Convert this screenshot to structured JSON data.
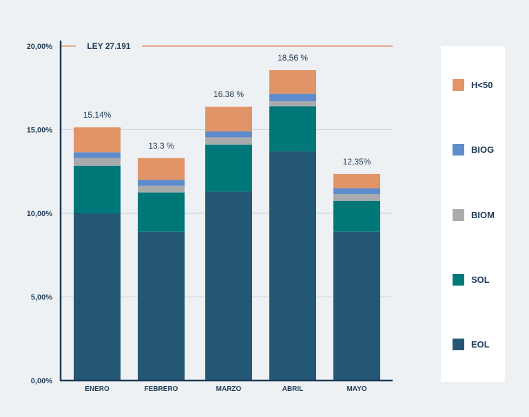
{
  "chart_data": {
    "type": "bar",
    "stacked": true,
    "categories": [
      "ENERO",
      "FEBRERO",
      "MARZO",
      "ABRIL",
      "MAYO"
    ],
    "series": [
      {
        "name": "EOL",
        "color": "#245773",
        "values": [
          10.0,
          8.9,
          11.3,
          13.7,
          8.9
        ]
      },
      {
        "name": "SOL",
        "color": "#00787a",
        "values": [
          2.85,
          2.35,
          2.8,
          2.7,
          1.85
        ]
      },
      {
        "name": "BIOM",
        "color": "#a9aaab",
        "values": [
          0.45,
          0.4,
          0.45,
          0.3,
          0.4
        ]
      },
      {
        "name": "BIOG",
        "color": "#5f8ccc",
        "values": [
          0.35,
          0.35,
          0.35,
          0.45,
          0.35
        ]
      },
      {
        "name": "H<50",
        "color": "#e09467",
        "values": [
          1.49,
          1.3,
          1.48,
          1.41,
          0.85
        ]
      }
    ],
    "totals_labels": [
      "15.14%",
      "13.3 %",
      "16.38 %",
      "18,56 %",
      "12,35%"
    ],
    "y_ticks": [
      "0,00%",
      "5,00%",
      "10,00%",
      "15,00%",
      "20,00%"
    ],
    "ylim": [
      0,
      20
    ],
    "reference_line": {
      "value": 20,
      "label": "LEY 27.191",
      "color": "#e09467"
    },
    "grid": true,
    "legend_position": "right"
  }
}
